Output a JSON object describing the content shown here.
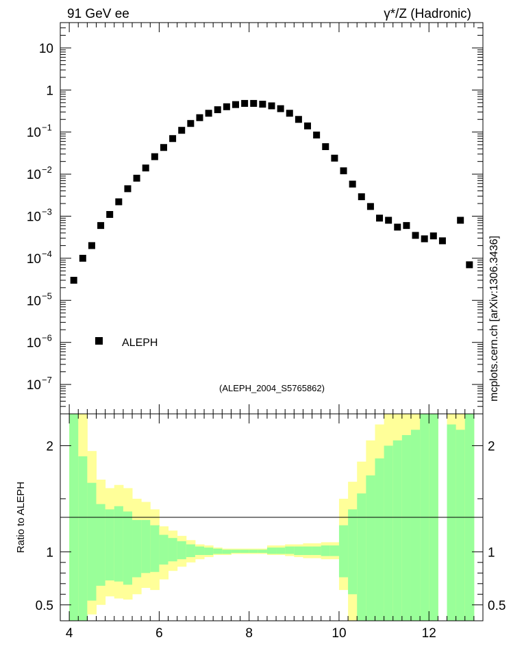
{
  "header": {
    "left": "91 GeV ee",
    "right": "γ*/Z (Hadronic)"
  },
  "side_label": "mcplots.cern.ch [arXiv:1306.3436]",
  "analysis_label": "(ALEPH_2004_S5765862)",
  "colors": {
    "inner_band": "#99ff99",
    "outer_band": "#ffff99",
    "marker": "#000000",
    "analysis_label": "#999999"
  },
  "chart_data": [
    {
      "type": "scatter",
      "yscale": "log",
      "xlim": [
        3.8,
        13.2
      ],
      "ylim": [
        2e-08,
        40
      ],
      "yticks": [
        {
          "value": 1e-07,
          "label": "10",
          "exp": "−7"
        },
        {
          "value": 1e-06,
          "label": "10",
          "exp": "−6"
        },
        {
          "value": 1e-05,
          "label": "10",
          "exp": "−5"
        },
        {
          "value": 0.0001,
          "label": "10",
          "exp": "−4"
        },
        {
          "value": 0.001,
          "label": "10",
          "exp": "−3"
        },
        {
          "value": 0.01,
          "label": "10",
          "exp": "−2"
        },
        {
          "value": 0.1,
          "label": "10",
          "exp": "−1"
        },
        {
          "value": 1,
          "label": "1",
          "exp": ""
        },
        {
          "value": 10,
          "label": "10",
          "exp": ""
        }
      ],
      "legend": {
        "entry": "ALEPH",
        "position": "lower-left"
      },
      "series": [
        {
          "name": "ALEPH",
          "x": [
            4.1,
            4.3,
            4.5,
            4.7,
            4.9,
            5.1,
            5.3,
            5.5,
            5.7,
            5.9,
            6.1,
            6.3,
            6.5,
            6.7,
            6.9,
            7.1,
            7.3,
            7.5,
            7.7,
            7.9,
            8.1,
            8.3,
            8.5,
            8.7,
            8.9,
            9.1,
            9.3,
            9.5,
            9.7,
            9.9,
            10.1,
            10.3,
            10.5,
            10.7,
            10.9,
            11.1,
            11.3,
            11.5,
            11.7,
            11.9,
            12.1,
            12.3,
            12.7,
            12.9
          ],
          "y": [
            3e-05,
            0.0001,
            0.0002,
            0.0006,
            0.0011,
            0.0022,
            0.0045,
            0.008,
            0.014,
            0.026,
            0.043,
            0.07,
            0.11,
            0.16,
            0.22,
            0.28,
            0.34,
            0.4,
            0.45,
            0.48,
            0.48,
            0.46,
            0.42,
            0.36,
            0.28,
            0.2,
            0.14,
            0.085,
            0.045,
            0.024,
            0.012,
            0.0058,
            0.0029,
            0.0017,
            0.0009,
            0.0008,
            0.00055,
            0.0006,
            0.00035,
            0.00029,
            0.00034,
            0.00026,
            0.0008,
            7e-05
          ]
        }
      ]
    },
    {
      "type": "area",
      "ylabel": "Ratio to ALEPH",
      "xlim": [
        3.8,
        13.2
      ],
      "ylim": [
        0.35,
        2.3
      ],
      "xticks": [
        4,
        6,
        8,
        10,
        12
      ],
      "yticks": [
        0.5,
        1,
        2
      ],
      "reference_line": 1,
      "bins": [
        4.0,
        4.2,
        4.4,
        4.6,
        4.8,
        5.0,
        5.2,
        5.4,
        5.6,
        5.8,
        6.0,
        6.2,
        6.4,
        6.6,
        6.8,
        7.0,
        7.2,
        7.4,
        7.6,
        7.8,
        8.0,
        8.2,
        8.4,
        8.6,
        8.8,
        9.0,
        9.2,
        9.4,
        9.6,
        9.8,
        10.0,
        10.2,
        10.4,
        10.6,
        10.8,
        11.0,
        11.2,
        11.4,
        11.6,
        11.8,
        12.0,
        12.2,
        12.4,
        12.6,
        12.8,
        13.0
      ],
      "inner_band": {
        "lo": [
          0.35,
          0.35,
          0.54,
          0.68,
          0.73,
          0.72,
          0.69,
          0.76,
          0.8,
          0.81,
          0.88,
          0.91,
          0.93,
          0.95,
          0.97,
          0.97,
          0.98,
          0.98,
          0.99,
          0.99,
          0.99,
          0.99,
          0.98,
          0.98,
          0.98,
          0.97,
          0.97,
          0.97,
          0.96,
          0.96,
          0.76,
          0.6,
          0.35,
          0.35,
          0.35,
          0.35,
          0.35,
          0.35,
          0.35,
          0.35,
          0.35,
          null,
          0.35,
          0.35,
          0.35
        ],
        "hi": [
          2.3,
          1.9,
          1.65,
          1.45,
          1.4,
          1.43,
          1.38,
          1.3,
          1.3,
          1.25,
          1.16,
          1.13,
          1.1,
          1.07,
          1.05,
          1.04,
          1.03,
          1.02,
          1.02,
          1.02,
          1.02,
          1.02,
          1.04,
          1.04,
          1.05,
          1.05,
          1.05,
          1.05,
          1.06,
          1.06,
          1.25,
          1.4,
          1.55,
          1.72,
          1.88,
          2.0,
          2.05,
          2.1,
          2.15,
          2.3,
          2.3,
          null,
          2.2,
          2.15,
          2.3
        ],
        "outer_lo": [
          0.35,
          0.35,
          0.41,
          0.5,
          0.58,
          0.56,
          0.55,
          0.6,
          0.66,
          0.64,
          0.74,
          0.82,
          0.86,
          0.9,
          0.93,
          0.95,
          0.97,
          0.97,
          0.98,
          0.98,
          0.98,
          0.98,
          0.97,
          0.97,
          0.96,
          0.95,
          0.94,
          0.94,
          0.93,
          0.93,
          0.64,
          0.35,
          0.35,
          0.35,
          0.35,
          0.35,
          0.35,
          0.35,
          0.35,
          0.35,
          0.35,
          null,
          0.35,
          0.35,
          0.35
        ],
        "outer_hi": [
          2.3,
          2.3,
          1.95,
          1.68,
          1.6,
          1.63,
          1.6,
          1.5,
          1.47,
          1.4,
          1.24,
          1.2,
          1.15,
          1.11,
          1.07,
          1.06,
          1.04,
          1.03,
          1.03,
          1.03,
          1.03,
          1.03,
          1.06,
          1.06,
          1.07,
          1.07,
          1.08,
          1.08,
          1.09,
          1.09,
          1.5,
          1.66,
          1.85,
          2.05,
          2.2,
          2.3,
          2.3,
          2.3,
          2.3,
          2.3,
          2.3,
          null,
          2.3,
          2.3,
          2.3
        ]
      }
    }
  ]
}
